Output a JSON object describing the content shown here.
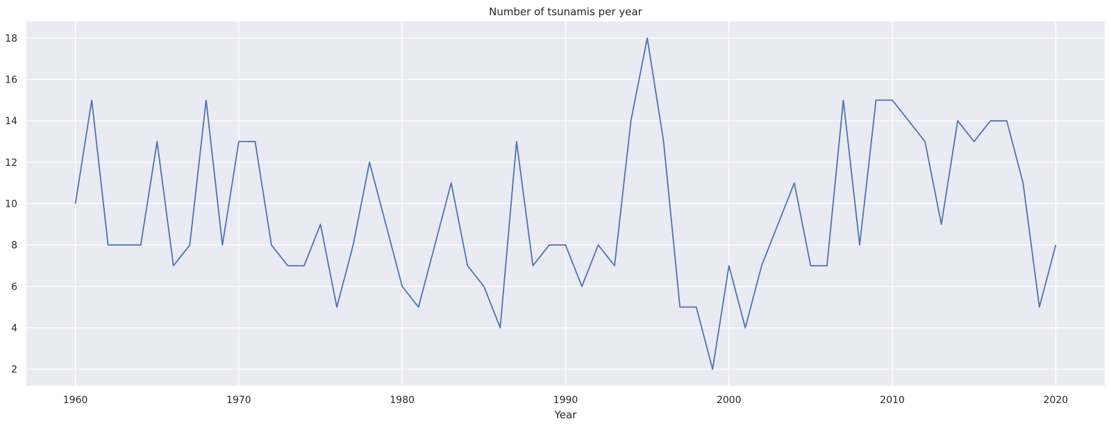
{
  "chart_data": {
    "type": "line",
    "title": "Number of tsunamis per year",
    "xlabel": "Year",
    "ylabel": "",
    "xlim": [
      1957,
      2023
    ],
    "ylim": [
      1.2,
      18.8
    ],
    "xticks": [
      1960,
      1970,
      1980,
      1990,
      2000,
      2010,
      2020
    ],
    "yticks": [
      2,
      4,
      6,
      8,
      10,
      12,
      14,
      16,
      18
    ],
    "grid": true,
    "background": "#eaeaf2",
    "line_color": "#4c72b0",
    "series": [
      {
        "x": [
          1960,
          1961,
          1962,
          1963,
          1964,
          1965,
          1966,
          1967,
          1968,
          1969,
          1970,
          1971,
          1972,
          1973,
          1974,
          1975,
          1976,
          1977,
          1978,
          1979,
          1980,
          1981,
          1982,
          1983,
          1984,
          1985,
          1986,
          1987,
          1988,
          1989,
          1990,
          1991,
          1992,
          1993,
          1994,
          1995,
          1996,
          1997,
          1998,
          1999,
          2000,
          2001,
          2002,
          2003,
          2004,
          2005,
          2006,
          2007,
          2008,
          2009,
          2010,
          2011,
          2012,
          2013,
          2014,
          2015,
          2016,
          2017,
          2018,
          2019,
          2020
        ],
        "y": [
          10,
          15,
          8,
          8,
          8,
          13,
          7,
          8,
          15,
          8,
          13,
          13,
          8,
          7,
          7,
          9,
          5,
          8,
          12,
          9,
          6,
          5,
          8,
          11,
          7,
          6,
          4,
          13,
          7,
          8,
          8,
          6,
          8,
          7,
          14,
          18,
          13,
          5,
          5,
          2,
          7,
          4,
          7,
          9,
          11,
          7,
          7,
          15,
          8,
          15,
          15,
          14,
          13,
          9,
          14,
          13,
          14,
          14,
          11,
          5,
          8
        ]
      }
    ]
  }
}
